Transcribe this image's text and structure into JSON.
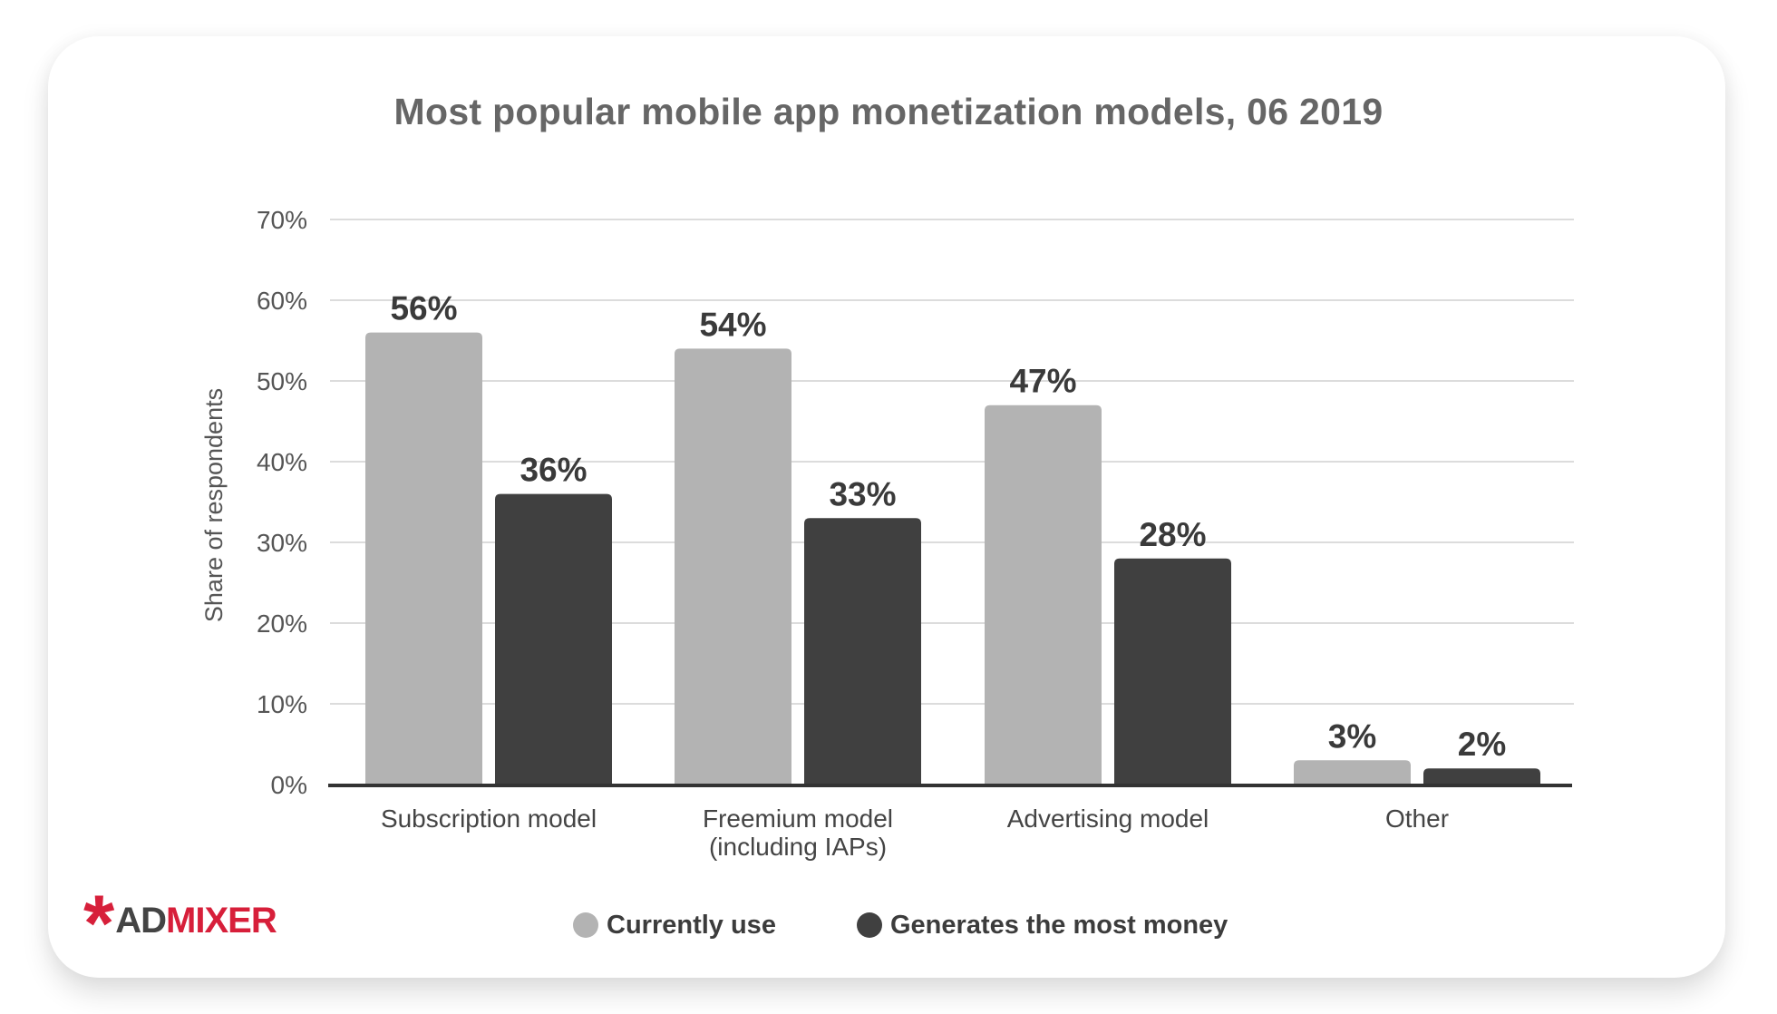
{
  "chart_data": {
    "type": "bar",
    "title": "Most popular mobile app monetization models, 06 2019",
    "ylabel": "Share of respondents",
    "xlabel": "",
    "ylim": [
      0,
      70
    ],
    "yticks": [
      "0%",
      "10%",
      "20%",
      "30%",
      "40%",
      "50%",
      "60%",
      "70%"
    ],
    "ytick_values": [
      0,
      10,
      20,
      30,
      40,
      50,
      60,
      70
    ],
    "grid": true,
    "legend_position": "bottom",
    "categories": [
      [
        "Subscription model"
      ],
      [
        "Freemium model",
        "(including IAPs)"
      ],
      [
        "Advertising model"
      ],
      [
        "Other"
      ]
    ],
    "series": [
      {
        "name": "Currently use",
        "color": "#b3b3b3",
        "values": [
          56,
          54,
          47,
          3
        ],
        "labels": [
          "56%",
          "54%",
          "47%",
          "3%"
        ]
      },
      {
        "name": "Generates the most money",
        "color": "#404040",
        "values": [
          36,
          33,
          28,
          2
        ],
        "labels": [
          "36%",
          "33%",
          "28%",
          "2%"
        ]
      }
    ]
  },
  "brand": {
    "logo_text": "ADMIXER",
    "logo_part1": "AD",
    "logo_part2": "MIXER",
    "accent": "#d71f3a"
  }
}
